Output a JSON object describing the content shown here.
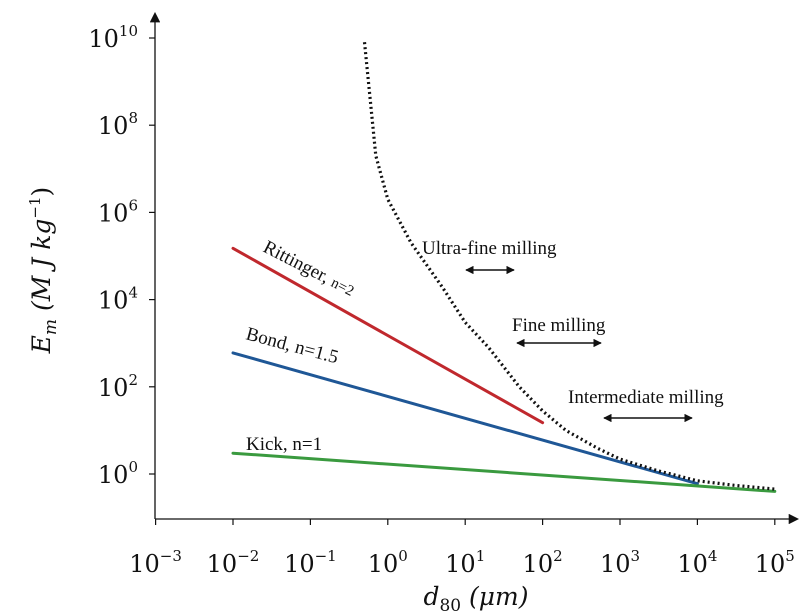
{
  "chart_data": {
    "type": "line",
    "title": "",
    "xscale": "log",
    "yscale": "log",
    "xlim": [
      0.001,
      100000
    ],
    "ylim": [
      0.1,
      10000000000
    ],
    "grid": false,
    "xlabel": {
      "base": "d",
      "sub": "80",
      "rest": " (μm)"
    },
    "ylabel": {
      "base": "E",
      "sub": "m",
      "rest": " (M J kg",
      "sup": "−1",
      "close": ")"
    },
    "xticks": [
      {
        "value": 0.001,
        "base": "10",
        "exp": "−3"
      },
      {
        "value": 0.01,
        "base": "10",
        "exp": "−2"
      },
      {
        "value": 0.1,
        "base": "10",
        "exp": "−1"
      },
      {
        "value": 1,
        "base": "10",
        "exp": "0"
      },
      {
        "value": 10,
        "base": "10",
        "exp": "1"
      },
      {
        "value": 100,
        "base": "10",
        "exp": "2"
      },
      {
        "value": 1000,
        "base": "10",
        "exp": "3"
      },
      {
        "value": 10000,
        "base": "10",
        "exp": "4"
      },
      {
        "value": 100000,
        "base": "10",
        "exp": "5"
      }
    ],
    "yticks": [
      {
        "value": 1,
        "base": "10",
        "exp": "0"
      },
      {
        "value": 100,
        "base": "10",
        "exp": "2"
      },
      {
        "value": 10000,
        "base": "10",
        "exp": "4"
      },
      {
        "value": 1000000,
        "base": "10",
        "exp": "6"
      },
      {
        "value": 100000000,
        "base": "10",
        "exp": "8"
      },
      {
        "value": 10000000000,
        "base": "10",
        "exp": "10"
      }
    ],
    "series": [
      {
        "label_base": "Rittinger, ",
        "label_small": "n=2",
        "color": "#c0282d",
        "style": "solid",
        "x": [
          0.01,
          100
        ],
        "y": [
          150000,
          15
        ]
      },
      {
        "label_base": "Bond, n=1.5",
        "color": "#1f5796",
        "style": "solid",
        "x": [
          0.01,
          10000
        ],
        "y": [
          600,
          0.6
        ]
      },
      {
        "label_base": "Kick, n=1",
        "color": "#3a9a3f",
        "style": "solid",
        "x": [
          0.01,
          100000
        ],
        "y": [
          3,
          0.4
        ]
      },
      {
        "label_base": "",
        "color": "#111111",
        "style": "dotted",
        "x": [
          0.5,
          0.7,
          1,
          2,
          5,
          10,
          20,
          50,
          100,
          200,
          500,
          1000,
          3000,
          10000,
          30000,
          100000
        ],
        "y": [
          8000000000,
          20000000,
          2000000,
          200000,
          20000,
          3000,
          800,
          100,
          28,
          10,
          4,
          2.2,
          1.2,
          0.7,
          0.55,
          0.45
        ]
      }
    ],
    "annotations": [
      {
        "text": "Ultra-fine milling",
        "label_x": 1.1,
        "label_y": 250000,
        "arrow_x": [
          10,
          50
        ],
        "arrow_y": 60000
      },
      {
        "text": "Fine milling",
        "label_x": 30,
        "label_y": 1800,
        "arrow_x": [
          60,
          600
        ],
        "arrow_y": 600
      },
      {
        "text": "Intermediate milling",
        "label_x": 400,
        "label_y": 30,
        "arrow_x": [
          600,
          6000
        ],
        "arrow_y": 10
      }
    ]
  }
}
